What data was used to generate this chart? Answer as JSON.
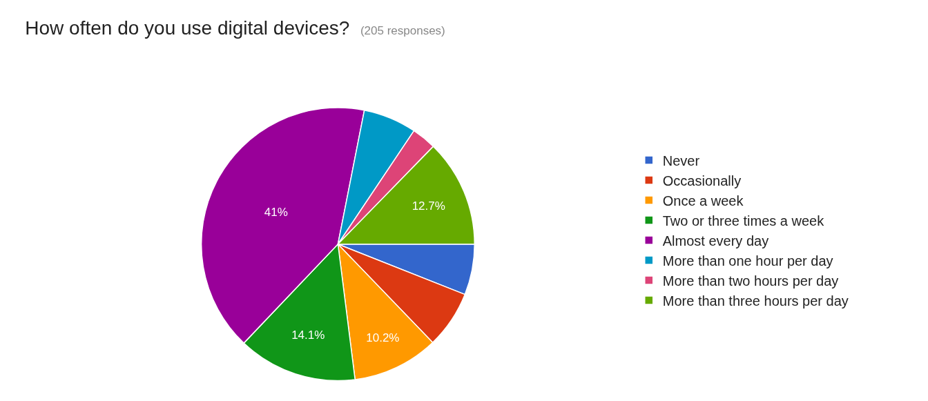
{
  "chart_data": {
    "type": "pie",
    "title": "How often do you use digital devices?",
    "subtitle": "(205 responses)",
    "categories": [
      "Never",
      "Occasionally",
      "Once a week",
      "Two or three times a week",
      "Almost every day",
      "More than one hour per day",
      "More than two hours per day",
      "More than three hours per day"
    ],
    "values": [
      6.0,
      6.8,
      10.2,
      14.1,
      41,
      6.3,
      2.9,
      12.7
    ],
    "value_labels": [
      null,
      null,
      "10.2%",
      "14.1%",
      "41%",
      null,
      null,
      "12.7%"
    ],
    "colors": [
      "#3366cc",
      "#dc3912",
      "#ff9900",
      "#109618",
      "#990099",
      "#0099c6",
      "#dd4477",
      "#66aa00"
    ],
    "legend": "right"
  }
}
